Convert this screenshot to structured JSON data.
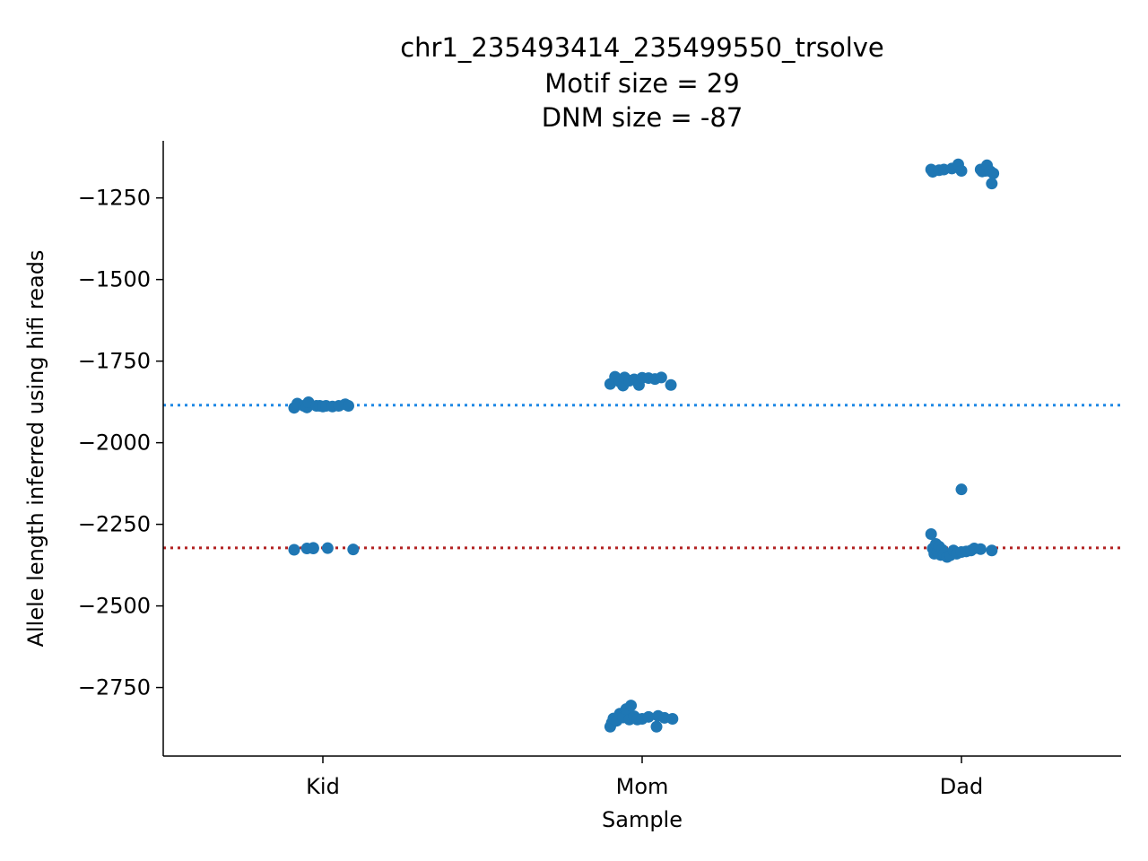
{
  "chart_data": {
    "type": "scatter",
    "title_lines": [
      "chr1_235493414_235499550_trsolve",
      "Motif size = 29",
      "DNM size = -87"
    ],
    "xlabel": "Sample",
    "ylabel": "Allele length inferred using hifi reads",
    "categories": [
      "Kid",
      "Mom",
      "Dad"
    ],
    "ylim": [
      -2960,
      -1075
    ],
    "yticks": [
      -1250,
      -1500,
      -1750,
      -2000,
      -2250,
      -2500,
      -2750
    ],
    "ytick_labels": [
      "−1250",
      "−1500",
      "−1750",
      "−2000",
      "−2250",
      "−2500",
      "−2750"
    ],
    "point_color": "#1f77b4",
    "reference_lines": [
      {
        "y": -1885,
        "color": "#1e88e5",
        "style": "dotted"
      },
      {
        "y": -2322,
        "color": "#b22222",
        "style": "dotted"
      }
    ],
    "series": [
      {
        "category": "Kid",
        "points": [
          {
            "x": -0.09,
            "y": -1893
          },
          {
            "x": -0.08,
            "y": -1880
          },
          {
            "x": -0.06,
            "y": -1887
          },
          {
            "x": -0.05,
            "y": -1892
          },
          {
            "x": -0.045,
            "y": -1876
          },
          {
            "x": -0.02,
            "y": -1887
          },
          {
            "x": -0.01,
            "y": -1887
          },
          {
            "x": 0.0,
            "y": -1889
          },
          {
            "x": 0.01,
            "y": -1887
          },
          {
            "x": 0.03,
            "y": -1889
          },
          {
            "x": 0.05,
            "y": -1887
          },
          {
            "x": 0.07,
            "y": -1882
          },
          {
            "x": 0.08,
            "y": -1887
          },
          {
            "x": -0.09,
            "y": -2328
          },
          {
            "x": -0.05,
            "y": -2324
          },
          {
            "x": -0.03,
            "y": -2324
          },
          {
            "x": -0.03,
            "y": -2322
          },
          {
            "x": 0.015,
            "y": -2323
          },
          {
            "x": 0.095,
            "y": -2327
          }
        ]
      },
      {
        "category": "Mom",
        "points": [
          {
            "x": -0.1,
            "y": -1820
          },
          {
            "x": -0.085,
            "y": -1798
          },
          {
            "x": -0.07,
            "y": -1813
          },
          {
            "x": -0.06,
            "y": -1825
          },
          {
            "x": -0.055,
            "y": -1800
          },
          {
            "x": -0.04,
            "y": -1810
          },
          {
            "x": -0.025,
            "y": -1806
          },
          {
            "x": -0.01,
            "y": -1823
          },
          {
            "x": 0.0,
            "y": -1801
          },
          {
            "x": 0.02,
            "y": -1802
          },
          {
            "x": 0.04,
            "y": -1805
          },
          {
            "x": 0.06,
            "y": -1800
          },
          {
            "x": 0.09,
            "y": -1823
          },
          {
            "x": -0.1,
            "y": -2870
          },
          {
            "x": -0.095,
            "y": -2858
          },
          {
            "x": -0.09,
            "y": -2845
          },
          {
            "x": -0.08,
            "y": -2852
          },
          {
            "x": -0.07,
            "y": -2830
          },
          {
            "x": -0.06,
            "y": -2842
          },
          {
            "x": -0.05,
            "y": -2816
          },
          {
            "x": -0.04,
            "y": -2848
          },
          {
            "x": -0.035,
            "y": -2805
          },
          {
            "x": -0.025,
            "y": -2838
          },
          {
            "x": -0.015,
            "y": -2848
          },
          {
            "x": 0.0,
            "y": -2846
          },
          {
            "x": 0.02,
            "y": -2840
          },
          {
            "x": 0.045,
            "y": -2870
          },
          {
            "x": 0.05,
            "y": -2837
          },
          {
            "x": 0.07,
            "y": -2843
          },
          {
            "x": 0.095,
            "y": -2846
          }
        ]
      },
      {
        "category": "Dad",
        "points": [
          {
            "x": -0.095,
            "y": -1163
          },
          {
            "x": -0.09,
            "y": -1170
          },
          {
            "x": -0.07,
            "y": -1165
          },
          {
            "x": -0.055,
            "y": -1163
          },
          {
            "x": -0.03,
            "y": -1160
          },
          {
            "x": -0.01,
            "y": -1147
          },
          {
            "x": 0.0,
            "y": -1167
          },
          {
            "x": 0.06,
            "y": -1163
          },
          {
            "x": 0.065,
            "y": -1169
          },
          {
            "x": 0.075,
            "y": -1167
          },
          {
            "x": 0.08,
            "y": -1150
          },
          {
            "x": 0.09,
            "y": -1168
          },
          {
            "x": 0.095,
            "y": -1206
          },
          {
            "x": 0.1,
            "y": -1175
          },
          {
            "x": 0.0,
            "y": -2143
          },
          {
            "x": -0.095,
            "y": -2280
          },
          {
            "x": -0.09,
            "y": -2324
          },
          {
            "x": -0.085,
            "y": -2340
          },
          {
            "x": -0.08,
            "y": -2310
          },
          {
            "x": -0.075,
            "y": -2335
          },
          {
            "x": -0.07,
            "y": -2318
          },
          {
            "x": -0.065,
            "y": -2344
          },
          {
            "x": -0.06,
            "y": -2328
          },
          {
            "x": -0.055,
            "y": -2340
          },
          {
            "x": -0.045,
            "y": -2350
          },
          {
            "x": -0.035,
            "y": -2345
          },
          {
            "x": -0.025,
            "y": -2330
          },
          {
            "x": -0.015,
            "y": -2340
          },
          {
            "x": 0.0,
            "y": -2335
          },
          {
            "x": 0.015,
            "y": -2333
          },
          {
            "x": 0.03,
            "y": -2330
          },
          {
            "x": 0.04,
            "y": -2324
          },
          {
            "x": 0.06,
            "y": -2326
          },
          {
            "x": 0.095,
            "y": -2330
          }
        ]
      }
    ]
  }
}
